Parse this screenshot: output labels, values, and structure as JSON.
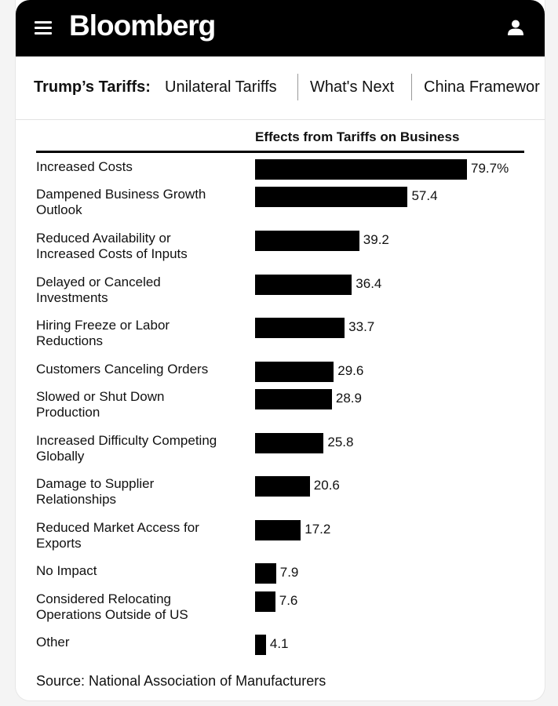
{
  "header": {
    "logo_text": "Bloomberg",
    "menu_icon": "hamburger-menu-icon",
    "user_icon": "user-account-icon",
    "background_color": "#000000"
  },
  "nav": {
    "title": "Trump’s Tariffs:",
    "links": [
      "Unilateral Tariffs",
      "What's Next",
      "China Framewor"
    ]
  },
  "chart_data": {
    "type": "bar",
    "orientation": "horizontal",
    "title": "Effects from Tariffs on Business",
    "categories": [
      "Increased Costs",
      "Dampened Business Growth Outlook",
      "Reduced Availability or Increased Costs of Inputs",
      "Delayed or Canceled Investments",
      "Hiring Freeze or Labor Reductions",
      "Customers Canceling Orders",
      "Slowed or Shut Down Production",
      "Increased Difficulty Competing Globally",
      "Damage to Supplier Relationships",
      "Reduced Market Access for Exports",
      "No Impact",
      "Considered Relocating Operations Outside of US",
      "Other"
    ],
    "category_lines": [
      [
        "Increased Costs"
      ],
      [
        "Dampened Business Growth",
        "Outlook"
      ],
      [
        "Reduced Availability or",
        "Increased Costs of Inputs"
      ],
      [
        "Delayed or Canceled",
        "Investments"
      ],
      [
        "Hiring Freeze or Labor",
        "Reductions"
      ],
      [
        "Customers Canceling Orders"
      ],
      [
        "Slowed or Shut Down",
        "Production"
      ],
      [
        "Increased Difficulty Competing",
        "Globally"
      ],
      [
        "Damage to Supplier",
        "Relationships"
      ],
      [
        "Reduced Market Access for",
        "Exports"
      ],
      [
        "No Impact"
      ],
      [
        "Considered Relocating",
        "Operations Outside of US"
      ],
      [
        "Other"
      ]
    ],
    "values": [
      79.7,
      57.4,
      39.2,
      36.4,
      33.7,
      29.6,
      28.9,
      25.8,
      20.6,
      17.2,
      7.9,
      7.6,
      4.1
    ],
    "value_labels": [
      "79.7%",
      "57.4",
      "39.2",
      "36.4",
      "33.7",
      "29.6",
      "28.9",
      "25.8",
      "20.6",
      "17.2",
      "7.9",
      "7.6",
      "4.1"
    ],
    "bar_color": "#000000",
    "grid": false,
    "legend": "none"
  },
  "source": "Source: National Association of Manufacturers"
}
